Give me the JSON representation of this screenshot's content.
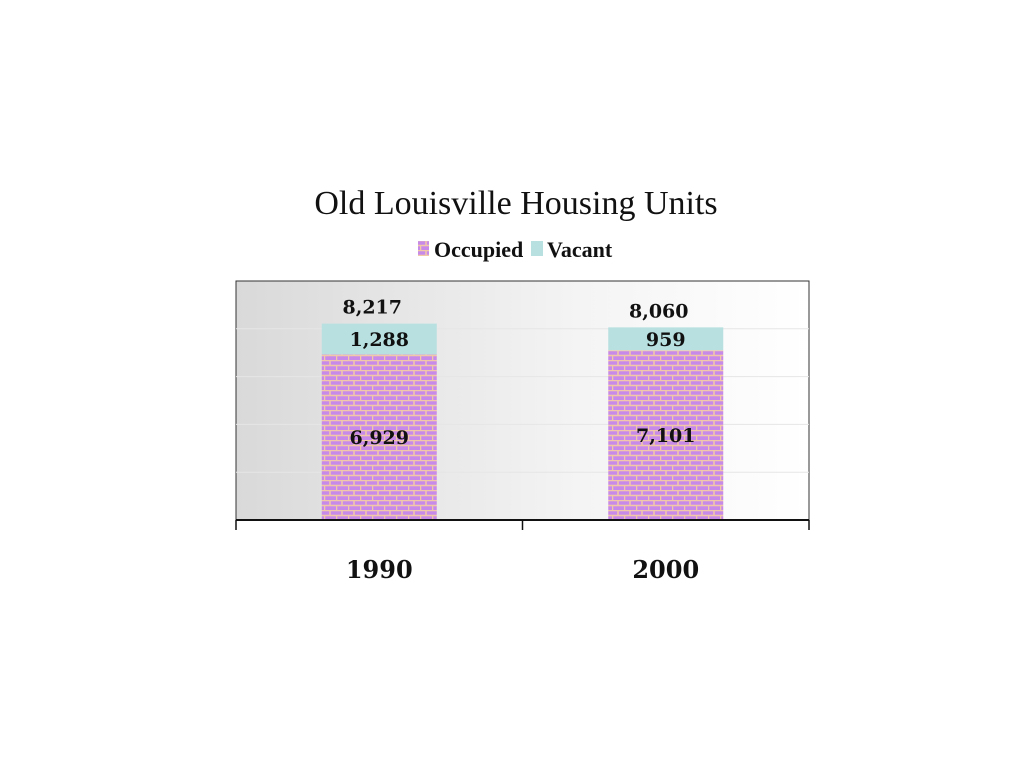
{
  "chart_data": {
    "type": "bar",
    "stacked": true,
    "title": "Old Louisville Housing Units",
    "categories": [
      "1990",
      "2000"
    ],
    "series": [
      {
        "name": "Occupied",
        "values": [
          6929,
          7101
        ],
        "labels": [
          "6,929",
          "7,101"
        ],
        "color": "#c88ae8"
      },
      {
        "name": "Vacant",
        "values": [
          1288,
          959
        ],
        "labels": [
          "1,288",
          "959"
        ],
        "color": "#b8e0e0"
      }
    ],
    "totals": [
      8217,
      8060
    ],
    "total_labels": [
      "8,217",
      "8,060"
    ],
    "ylim": [
      0,
      10000
    ],
    "legend_position": "top",
    "grid": true,
    "plot_background": "gradient-gray-to-white",
    "pattern": "brick"
  }
}
